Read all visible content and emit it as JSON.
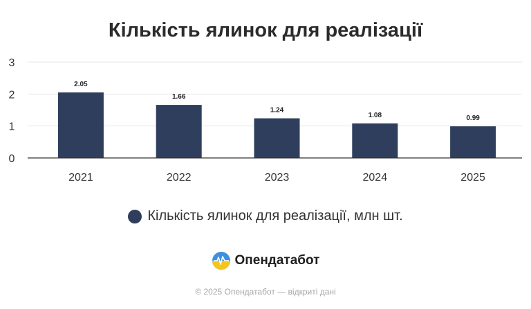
{
  "chart_data": {
    "type": "bar",
    "title": "Кількість ялинок для реалізації",
    "categories": [
      "2021",
      "2022",
      "2023",
      "2024",
      "2025"
    ],
    "series": [
      {
        "name": "Кількість ялинок для реалізації, млн шт.",
        "values": [
          2.05,
          1.66,
          1.24,
          1.08,
          0.99
        ],
        "data_labels": [
          "2.05",
          "1.66",
          "1.24",
          "1.08",
          "0.99"
        ],
        "color": "#2e3e5c"
      }
    ],
    "y_ticks": [
      "0",
      "1",
      "2",
      "3"
    ],
    "ylim": [
      0,
      3
    ],
    "grid": true,
    "legend": "bottom"
  },
  "brand": {
    "name": "Опендатабот",
    "logo_icon": "opendatabot-logo-icon"
  },
  "footer": {
    "text": "© 2025 Опендатабот — відкриті дані"
  },
  "colors": {
    "bar": "#2e3e5c",
    "grid": "#e5e5e5",
    "axis": "#333333",
    "logo_blue": "#3f8fe0",
    "logo_yellow": "#f5c518"
  }
}
